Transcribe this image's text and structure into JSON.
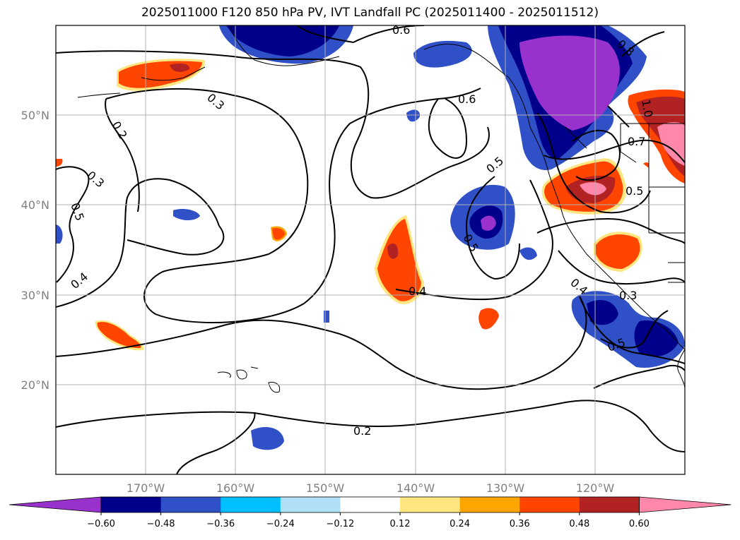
{
  "title": "2025011000 F120 850 hPa PV, IVT Landfall PC (2025011400 - 2025011512)",
  "map": {
    "projection": "PlateCarree",
    "lon_range": [
      -180,
      -110
    ],
    "lat_range": [
      10,
      60
    ],
    "gridlines": true,
    "lon_ticks": [
      {
        "value": -170,
        "label": "170°W"
      },
      {
        "value": -160,
        "label": "160°W"
      },
      {
        "value": -150,
        "label": "150°W"
      },
      {
        "value": -140,
        "label": "140°W"
      },
      {
        "value": -130,
        "label": "130°W"
      },
      {
        "value": -120,
        "label": "120°W"
      }
    ],
    "lat_ticks": [
      {
        "value": 50,
        "label": "50°N"
      },
      {
        "value": 40,
        "label": "40°N"
      },
      {
        "value": 30,
        "label": "30°N"
      },
      {
        "value": 20,
        "label": "20°N"
      }
    ],
    "contour_labels": [
      "0.6",
      "0.8",
      "0.3",
      "0.2",
      "0.6",
      "0.5",
      "1.0",
      "0.7",
      "0.3",
      "0.5",
      "0.5",
      "0.5",
      "0.4",
      "0.4",
      "0.4",
      "0.3",
      "0.5",
      "0.2"
    ]
  },
  "colorbar": {
    "extend": "both",
    "colors": [
      "#9932cc",
      "#00008b",
      "#3050c8",
      "#00bfff",
      "#b0e0f8",
      "#ffffff",
      "#ffe680",
      "#ffa500",
      "#ff4500",
      "#b22222",
      "#ff88aa"
    ],
    "tick_labels": [
      "−0.60",
      "−0.48",
      "−0.36",
      "−0.24",
      "−0.12",
      "0.12",
      "0.24",
      "0.36",
      "0.48",
      "0.60"
    ]
  }
}
